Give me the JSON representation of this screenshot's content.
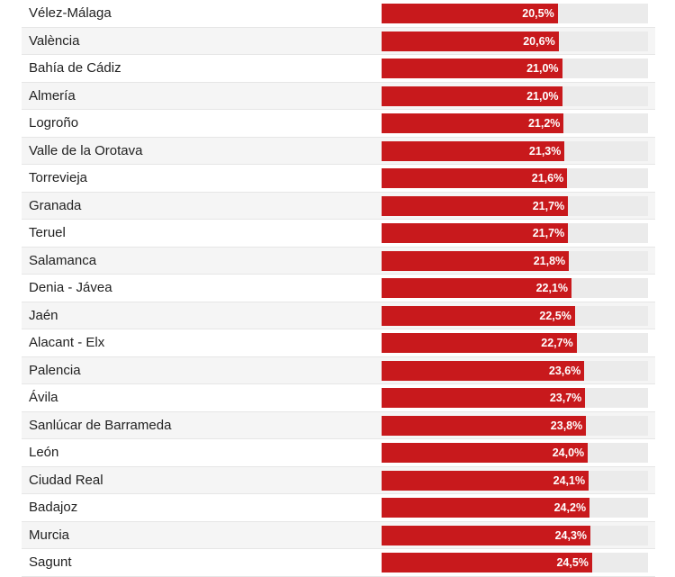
{
  "chart_data": {
    "type": "bar",
    "orientation": "horizontal",
    "max": 31,
    "bar_color": "#c8191c",
    "track_color": "#ebebeb",
    "categories": [
      "Vélez-Málaga",
      "València",
      "Bahía de Cádiz",
      "Almería",
      "Logroño",
      "Valle de la Orotava",
      "Torrevieja",
      "Granada",
      "Teruel",
      "Salamanca",
      "Denia - Jávea",
      "Jaén",
      "Alacant - Elx",
      "Palencia",
      "Ávila",
      "Sanlúcar de Barrameda",
      "León",
      "Ciudad Real",
      "Badajoz",
      "Murcia",
      "Sagunt"
    ],
    "values": [
      20.5,
      20.6,
      21.0,
      21.0,
      21.2,
      21.3,
      21.6,
      21.7,
      21.7,
      21.8,
      22.1,
      22.5,
      22.7,
      23.6,
      23.7,
      23.8,
      24.0,
      24.1,
      24.2,
      24.3,
      24.5
    ],
    "labels": [
      "20,5%",
      "20,6%",
      "21,0%",
      "21,0%",
      "21,2%",
      "21,3%",
      "21,6%",
      "21,7%",
      "21,7%",
      "21,8%",
      "22,1%",
      "22,5%",
      "22,7%",
      "23,6%",
      "23,7%",
      "23,8%",
      "24,0%",
      "24,1%",
      "24,2%",
      "24,3%",
      "24,5%"
    ]
  }
}
